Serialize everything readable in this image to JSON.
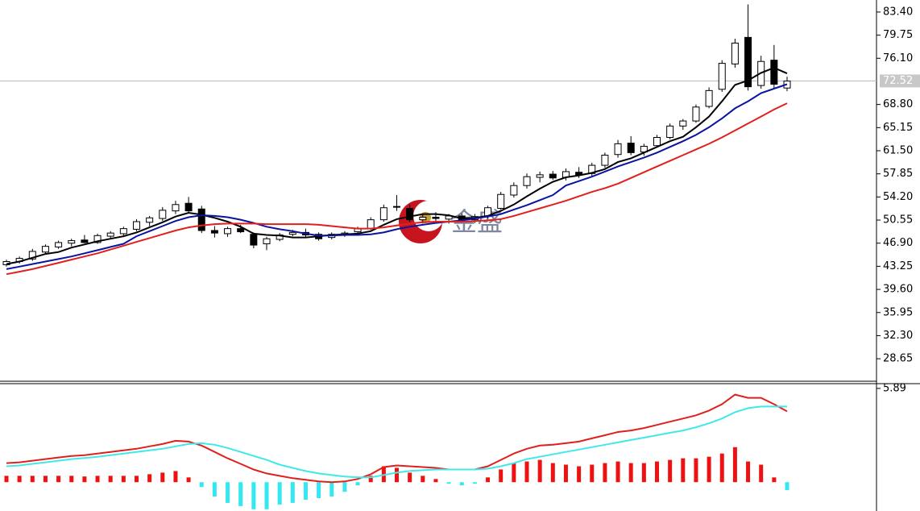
{
  "chart_data": [
    {
      "type": "candlestick",
      "ylim": [
        25.1,
        85.3
      ],
      "yticks": [
        {
          "value": 83.4,
          "label": "83.40"
        },
        {
          "value": 79.75,
          "label": "79.75"
        },
        {
          "value": 76.1,
          "label": "76.10"
        },
        {
          "value": 68.8,
          "label": "68.80"
        },
        {
          "value": 65.15,
          "label": "65.15"
        },
        {
          "value": 61.5,
          "label": "61.50"
        },
        {
          "value": 57.85,
          "label": "57.85"
        },
        {
          "value": 54.2,
          "label": "54.20"
        },
        {
          "value": 50.55,
          "label": "50.55"
        },
        {
          "value": 46.9,
          "label": "46.90"
        },
        {
          "value": 43.25,
          "label": "43.25"
        },
        {
          "value": 39.6,
          "label": "39.60"
        },
        {
          "value": 35.95,
          "label": "35.95"
        },
        {
          "value": 32.3,
          "label": "32.30"
        },
        {
          "value": 28.65,
          "label": "28.65"
        }
      ],
      "last_price": {
        "value": 72.52,
        "label": "72.52"
      },
      "watermark": "金盛",
      "ohlc": [
        [
          43.5,
          44.3,
          43.2,
          44.0
        ],
        [
          44.0,
          44.8,
          43.7,
          44.5
        ],
        [
          44.4,
          46.0,
          44.1,
          45.6
        ],
        [
          45.5,
          46.7,
          45.1,
          46.4
        ],
        [
          46.3,
          47.3,
          46.0,
          47.0
        ],
        [
          46.9,
          47.6,
          46.4,
          47.3
        ],
        [
          47.4,
          48.2,
          46.9,
          47.0
        ],
        [
          47.0,
          48.4,
          46.8,
          48.1
        ],
        [
          48.0,
          48.8,
          47.6,
          48.5
        ],
        [
          48.4,
          49.5,
          48.1,
          49.2
        ],
        [
          49.1,
          50.7,
          48.8,
          50.3
        ],
        [
          50.2,
          51.2,
          49.6,
          50.9
        ],
        [
          50.8,
          52.6,
          50.4,
          52.1
        ],
        [
          52.0,
          53.6,
          51.5,
          53.0
        ],
        [
          53.2,
          54.2,
          51.8,
          52.0
        ],
        [
          52.3,
          52.8,
          48.5,
          48.9
        ],
        [
          48.9,
          49.6,
          47.8,
          48.5
        ],
        [
          48.4,
          49.5,
          47.9,
          49.2
        ],
        [
          49.2,
          49.8,
          48.5,
          48.7
        ],
        [
          48.3,
          48.6,
          46.1,
          46.6
        ],
        [
          46.8,
          47.9,
          45.8,
          47.6
        ],
        [
          47.5,
          48.5,
          47.2,
          48.2
        ],
        [
          48.3,
          49.0,
          48.0,
          48.6
        ],
        [
          48.6,
          49.2,
          47.9,
          48.2
        ],
        [
          48.3,
          48.6,
          47.3,
          47.6
        ],
        [
          47.8,
          48.6,
          47.5,
          48.3
        ],
        [
          48.3,
          48.8,
          47.9,
          48.5
        ],
        [
          48.7,
          49.5,
          48.4,
          49.2
        ],
        [
          49.2,
          51.0,
          49.0,
          50.6
        ],
        [
          50.6,
          53.0,
          50.3,
          52.5
        ],
        [
          52.6,
          54.5,
          52.0,
          52.7
        ],
        [
          52.4,
          53.0,
          50.2,
          50.6
        ],
        [
          50.6,
          51.4,
          50.0,
          51.0
        ],
        [
          51.0,
          51.8,
          50.3,
          50.8
        ],
        [
          50.7,
          51.5,
          50.0,
          51.2
        ],
        [
          51.2,
          51.6,
          50.2,
          50.6
        ],
        [
          50.6,
          51.5,
          50.1,
          51.1
        ],
        [
          51.2,
          52.8,
          50.8,
          52.5
        ],
        [
          52.4,
          55.0,
          52.2,
          54.6
        ],
        [
          54.5,
          56.5,
          54.1,
          56.0
        ],
        [
          56.0,
          57.9,
          55.5,
          57.4
        ],
        [
          57.3,
          58.2,
          56.5,
          57.7
        ],
        [
          57.8,
          58.3,
          56.9,
          57.2
        ],
        [
          57.3,
          58.7,
          56.8,
          58.2
        ],
        [
          58.1,
          58.9,
          57.2,
          57.7
        ],
        [
          57.9,
          59.6,
          57.5,
          59.2
        ],
        [
          59.2,
          61.2,
          58.8,
          60.8
        ],
        [
          60.9,
          63.2,
          60.4,
          62.6
        ],
        [
          62.7,
          63.8,
          60.8,
          61.2
        ],
        [
          61.3,
          62.6,
          60.7,
          62.2
        ],
        [
          62.3,
          64.0,
          62.0,
          63.6
        ],
        [
          63.6,
          65.8,
          63.3,
          65.4
        ],
        [
          65.4,
          66.5,
          64.8,
          66.2
        ],
        [
          66.2,
          68.8,
          65.9,
          68.4
        ],
        [
          68.5,
          71.5,
          68.2,
          71.0
        ],
        [
          71.2,
          75.8,
          70.8,
          75.3
        ],
        [
          75.2,
          79.2,
          74.6,
          78.5
        ],
        [
          79.4,
          84.6,
          71.0,
          71.6
        ],
        [
          71.8,
          76.5,
          71.3,
          75.6
        ],
        [
          75.8,
          78.2,
          71.2,
          72.0
        ],
        [
          71.4,
          73.2,
          70.9,
          72.5
        ]
      ],
      "lines": [
        {
          "color": "#000000",
          "values": [
            43.6,
            44.0,
            44.6,
            45.2,
            45.5,
            46.2,
            46.7,
            47.2,
            47.6,
            48.0,
            48.6,
            49.4,
            50.2,
            51.1,
            51.7,
            51.4,
            50.9,
            50.3,
            49.5,
            48.4,
            48.2,
            48.1,
            47.8,
            47.8,
            48.0,
            48.2,
            48.3,
            48.4,
            48.8,
            49.8,
            50.7,
            51.1,
            51.5,
            51.5,
            51.3,
            50.8,
            50.9,
            51.2,
            52.0,
            53.0,
            54.3,
            55.5,
            56.6,
            57.3,
            57.6,
            58.0,
            58.6,
            59.7,
            60.3,
            61.2,
            62.1,
            63.0,
            63.7,
            65.2,
            66.9,
            69.3,
            71.9,
            72.6,
            73.8,
            74.6,
            73.7
          ]
        },
        {
          "color": "#0a14a0",
          "values": [
            42.8,
            43.2,
            43.6,
            44.0,
            44.4,
            44.8,
            45.3,
            45.8,
            46.3,
            46.8,
            48.0,
            48.8,
            49.6,
            50.4,
            51.0,
            51.3,
            51.2,
            51.0,
            50.6,
            50.1,
            49.5,
            49.1,
            48.8,
            48.4,
            48.1,
            48.1,
            48.2,
            48.2,
            48.3,
            48.6,
            49.1,
            49.5,
            49.8,
            50.1,
            50.3,
            50.5,
            50.8,
            51.1,
            51.5,
            52.2,
            52.9,
            53.7,
            54.5,
            56.0,
            56.7,
            57.4,
            58.2,
            59.0,
            59.7,
            60.4,
            61.2,
            62.1,
            63.0,
            64.0,
            65.2,
            66.6,
            68.2,
            69.3,
            70.6,
            71.3,
            72.0
          ]
        },
        {
          "color": "#e0201c",
          "values": [
            42.0,
            42.4,
            42.8,
            43.3,
            43.8,
            44.3,
            44.8,
            45.3,
            45.9,
            46.5,
            47.1,
            47.7,
            48.3,
            48.9,
            49.4,
            49.7,
            49.9,
            50.0,
            50.0,
            50.0,
            49.9,
            49.9,
            49.9,
            49.9,
            49.8,
            49.6,
            49.4,
            49.2,
            49.2,
            49.4,
            49.7,
            50.0,
            50.2,
            50.3,
            50.3,
            50.3,
            50.4,
            50.5,
            50.7,
            51.2,
            51.8,
            52.4,
            53.0,
            53.6,
            54.3,
            55.0,
            55.6,
            56.3,
            57.2,
            58.1,
            59.0,
            59.9,
            60.8,
            61.7,
            62.6,
            63.6,
            64.7,
            65.8,
            66.9,
            68.0,
            69.0
          ]
        }
      ]
    },
    {
      "type": "macd",
      "ylim": [
        -1.81,
        6.19
      ],
      "yticks": [
        5.89
      ],
      "lines": [
        {
          "color": "#e0201c",
          "values": [
            1.2,
            1.25,
            1.35,
            1.45,
            1.55,
            1.65,
            1.7,
            1.8,
            1.9,
            2.0,
            2.1,
            2.25,
            2.4,
            2.6,
            2.55,
            2.3,
            1.9,
            1.5,
            1.15,
            0.8,
            0.55,
            0.4,
            0.25,
            0.15,
            0.05,
            0.0,
            0.05,
            0.2,
            0.5,
            0.95,
            1.05,
            1.0,
            0.95,
            0.9,
            0.8,
            0.8,
            0.8,
            1.0,
            1.4,
            1.8,
            2.1,
            2.3,
            2.35,
            2.45,
            2.55,
            2.75,
            2.95,
            3.15,
            3.25,
            3.4,
            3.6,
            3.8,
            4.0,
            4.2,
            4.5,
            4.9,
            5.5,
            5.3,
            5.3,
            4.9,
            4.45
          ]
        },
        {
          "color": "#40e8e8",
          "values": [
            1.0,
            1.05,
            1.15,
            1.25,
            1.35,
            1.45,
            1.52,
            1.6,
            1.7,
            1.8,
            1.9,
            2.0,
            2.1,
            2.25,
            2.4,
            2.45,
            2.35,
            2.15,
            1.9,
            1.65,
            1.4,
            1.1,
            0.9,
            0.7,
            0.55,
            0.45,
            0.35,
            0.3,
            0.3,
            0.45,
            0.6,
            0.7,
            0.75,
            0.8,
            0.8,
            0.8,
            0.8,
            0.85,
            1.0,
            1.2,
            1.45,
            1.6,
            1.75,
            1.9,
            2.05,
            2.2,
            2.35,
            2.5,
            2.65,
            2.8,
            2.95,
            3.1,
            3.25,
            3.45,
            3.7,
            4.0,
            4.4,
            4.65,
            4.75,
            4.75,
            4.75
          ]
        }
      ],
      "histogram": {
        "up_color": "#ee1111",
        "down_color": "#33e8f0",
        "values": [
          0.4,
          0.4,
          0.4,
          0.4,
          0.4,
          0.4,
          0.36,
          0.4,
          0.4,
          0.4,
          0.4,
          0.5,
          0.6,
          0.7,
          0.3,
          -0.3,
          -0.9,
          -1.3,
          -1.5,
          -1.7,
          -1.7,
          -1.4,
          -1.3,
          -1.1,
          -1.0,
          -0.9,
          -0.6,
          -0.2,
          0.4,
          1.0,
          0.9,
          0.6,
          0.4,
          0.2,
          -0.1,
          -0.2,
          -0.1,
          0.3,
          0.8,
          1.2,
          1.3,
          1.4,
          1.2,
          1.1,
          1.0,
          1.1,
          1.2,
          1.3,
          1.2,
          1.2,
          1.3,
          1.4,
          1.5,
          1.5,
          1.6,
          1.8,
          2.2,
          1.3,
          1.1,
          0.3,
          -0.5
        ]
      }
    }
  ]
}
